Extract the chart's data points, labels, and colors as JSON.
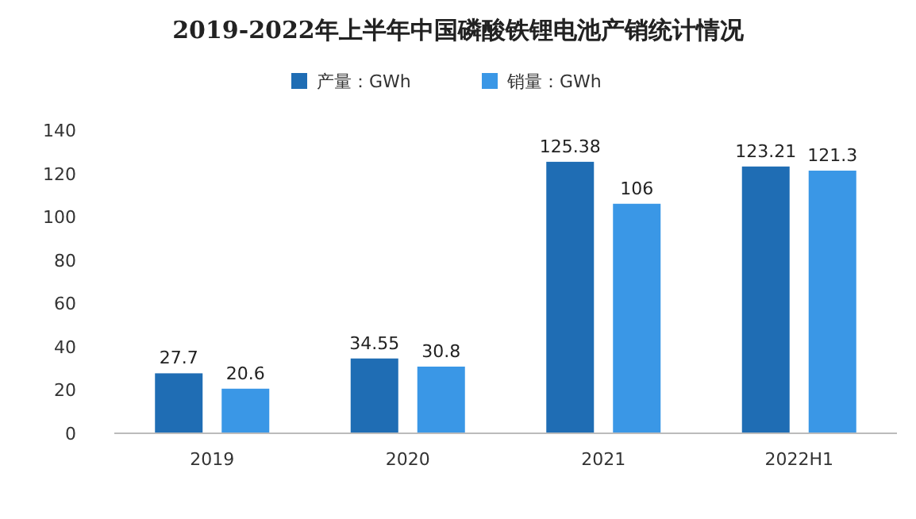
{
  "chart_data": {
    "type": "bar",
    "title": "2019-2022年上半年中国磷酸铁锂电池产销统计情况",
    "categories": [
      "2019",
      "2020",
      "2021",
      "2022H1"
    ],
    "series": [
      {
        "name": "产量：GWh",
        "color": "#1f6db4",
        "values": [
          27.7,
          34.55,
          125.38,
          123.21
        ]
      },
      {
        "name": "销量：GWh",
        "color": "#3a97e6",
        "values": [
          20.6,
          30.8,
          106,
          121.3
        ]
      }
    ],
    "ylim": [
      0,
      140
    ],
    "yticks": [
      0,
      20,
      40,
      60,
      80,
      100,
      120,
      140
    ],
    "data_labels": true,
    "legend": "top"
  }
}
